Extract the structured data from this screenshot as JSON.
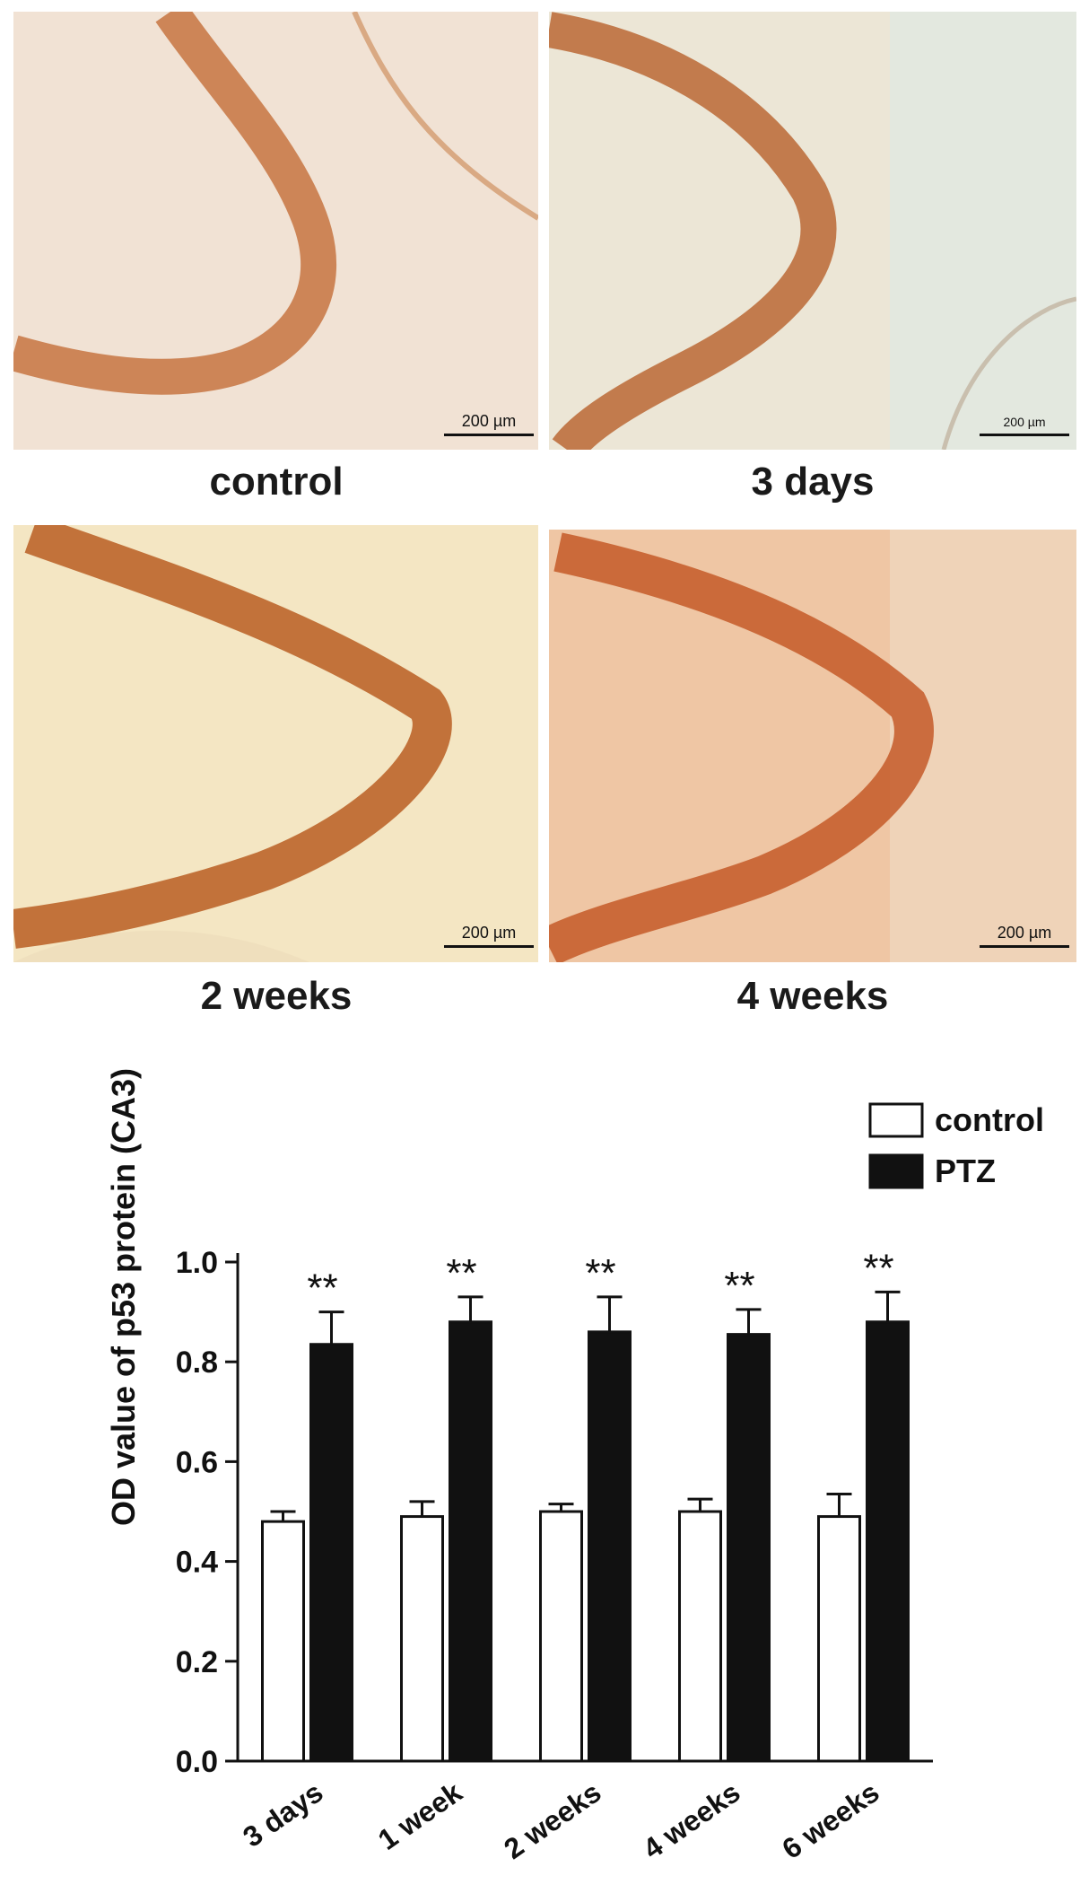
{
  "panels": [
    {
      "label": "control",
      "scale_bar": "200 µm"
    },
    {
      "label": "3 days",
      "scale_bar": "200 µm"
    },
    {
      "label": "2 weeks",
      "scale_bar": "200 µm"
    },
    {
      "label": "4 weeks",
      "scale_bar": "200 µm"
    }
  ],
  "colors": {
    "control_bar": "#ffffff",
    "ptz_bar": "#111111",
    "stain_layer": "#b8551f"
  },
  "chart_data": {
    "type": "bar",
    "ylabel": "OD value of p53 protein (CA3)",
    "xlabel": "",
    "ylim": [
      0,
      1.0
    ],
    "yticks": [
      "0.0",
      "0.2",
      "0.4",
      "0.6",
      "0.8",
      "1.0"
    ],
    "categories": [
      "3 days",
      "1 week",
      "2 weeks",
      "4 weeks",
      "6 weeks"
    ],
    "legend_position": "top-right",
    "series": [
      {
        "name": "control",
        "values": [
          0.48,
          0.49,
          0.5,
          0.5,
          0.49
        ],
        "errors": [
          0.02,
          0.03,
          0.015,
          0.025,
          0.045
        ]
      },
      {
        "name": "PTZ",
        "values": [
          0.835,
          0.88,
          0.86,
          0.855,
          0.88
        ],
        "errors": [
          0.065,
          0.05,
          0.07,
          0.05,
          0.06
        ]
      }
    ],
    "annotations": [
      "**",
      "**",
      "**",
      "**",
      "**"
    ]
  }
}
